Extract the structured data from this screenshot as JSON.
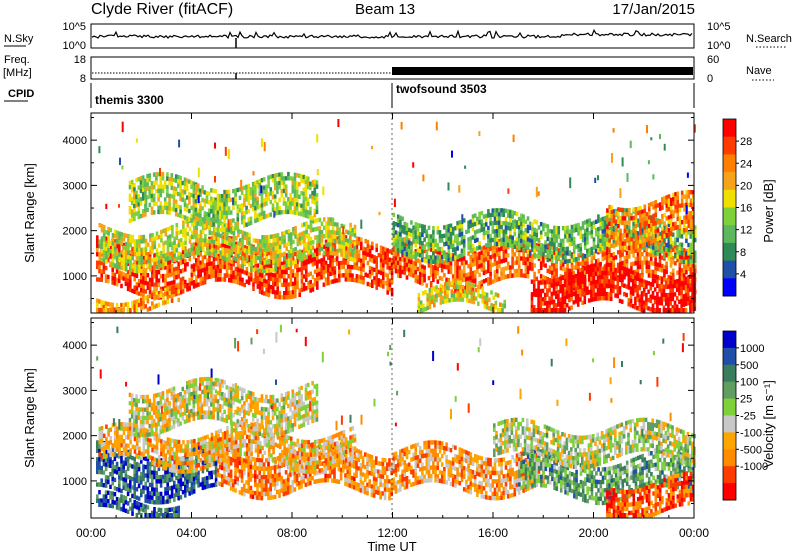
{
  "header": {
    "station": "Clyde River (fitACF)",
    "beam": "Beam 13",
    "date": "17/Jan/2015"
  },
  "status": {
    "nsky_label": "N.Sky",
    "nsky_ticks": [
      "10^5",
      "10^0"
    ],
    "nsearch_label": "N.Search",
    "freq_label": "Freq.",
    "freq_unit": "[MHz]",
    "freq_ticks": [
      "18",
      "8"
    ],
    "nave_label": "Nave",
    "nave_ticks": [
      "60",
      "0"
    ],
    "cpid_label": "CPID",
    "cpid_modes": [
      {
        "name": "themis 3300",
        "start_hour": 0
      },
      {
        "name": "twofsound 3503",
        "start_hour": 12
      }
    ]
  },
  "colors": {
    "power": [
      "#0000ff",
      "#1f4fa8",
      "#2e8b57",
      "#5cb85c",
      "#7fd13b",
      "#f0e000",
      "#f7a21b",
      "#ff7f00",
      "#ff3c00",
      "#ff0000"
    ],
    "velocity": [
      "#0000cc",
      "#1f4fa8",
      "#3a7d5c",
      "#5f9e60",
      "#7fd13b",
      "#c8c8c8",
      "#ffa500",
      "#ff8c00",
      "#ff3c00",
      "#ff0000"
    ]
  },
  "chart_data": [
    {
      "type": "heatmap",
      "name": "power",
      "xlabel": "",
      "ylabel": "Slant Range [km]",
      "xlim": [
        0,
        24
      ],
      "ylim": [
        180,
        4600
      ],
      "yticks": [
        1000,
        2000,
        3000,
        4000
      ],
      "colorbar": {
        "label": "Power [dB]",
        "range": [
          0,
          32
        ],
        "ticks": [
          "4",
          "8",
          "12",
          "16",
          "20",
          "24",
          "28"
        ]
      },
      "bands": [
        {
          "start": 0.2,
          "end": 12.0,
          "low": 700,
          "high": 1700,
          "level": 0.85
        },
        {
          "start": 0.3,
          "end": 10.5,
          "low": 1300,
          "high": 2100,
          "level": 0.5
        },
        {
          "start": 0.2,
          "end": 3.5,
          "low": 250,
          "high": 600,
          "level": 0.7
        },
        {
          "start": 1.5,
          "end": 9.0,
          "low": 2200,
          "high": 3100,
          "level": 0.45
        },
        {
          "start": 12.0,
          "end": 24.0,
          "low": 800,
          "high": 1700,
          "level": 0.8
        },
        {
          "start": 12.0,
          "end": 24.0,
          "low": 1500,
          "high": 2300,
          "level": 0.35
        },
        {
          "start": 17.5,
          "end": 24.0,
          "low": 300,
          "high": 1100,
          "level": 0.95
        },
        {
          "start": 13.0,
          "end": 16.5,
          "low": 250,
          "high": 700,
          "level": 0.55
        },
        {
          "start": 20.5,
          "end": 24.0,
          "low": 1800,
          "high": 2700,
          "level": 0.75
        }
      ]
    },
    {
      "type": "heatmap",
      "name": "velocity",
      "xlabel": "Time UT",
      "ylabel": "Slant Range [km]",
      "xlim": [
        0,
        24
      ],
      "ylim": [
        180,
        4600
      ],
      "yticks": [
        1000,
        2000,
        3000,
        4000
      ],
      "xticks": [
        "00:00",
        "04:00",
        "08:00",
        "12:00",
        "16:00",
        "20:00",
        "00:00"
      ],
      "colorbar": {
        "label": "Velocity [m s⁻¹]",
        "ticks": [
          "1000",
          "500",
          "100",
          "25",
          "-25",
          "-100",
          "-500",
          "-1000"
        ]
      },
      "bands": [
        {
          "start": 0.2,
          "end": 5.0,
          "low": 700,
          "high": 1700,
          "level": 0.18
        },
        {
          "start": 5.0,
          "end": 12.0,
          "low": 800,
          "high": 1700,
          "level": 0.72
        },
        {
          "start": 12.0,
          "end": 18.0,
          "low": 800,
          "high": 1700,
          "level": 0.7
        },
        {
          "start": 17.0,
          "end": 24.0,
          "low": 700,
          "high": 1500,
          "level": 0.35
        },
        {
          "start": 16.0,
          "end": 24.0,
          "low": 1500,
          "high": 2200,
          "level": 0.5
        },
        {
          "start": 0.3,
          "end": 10.5,
          "low": 1400,
          "high": 2100,
          "level": 0.65
        },
        {
          "start": 0.2,
          "end": 3.5,
          "low": 250,
          "high": 600,
          "level": 0.2
        },
        {
          "start": 1.5,
          "end": 9.0,
          "low": 2200,
          "high": 3100,
          "level": 0.55
        },
        {
          "start": 20.5,
          "end": 24.0,
          "low": 300,
          "high": 1000,
          "level": 0.85
        }
      ]
    }
  ]
}
